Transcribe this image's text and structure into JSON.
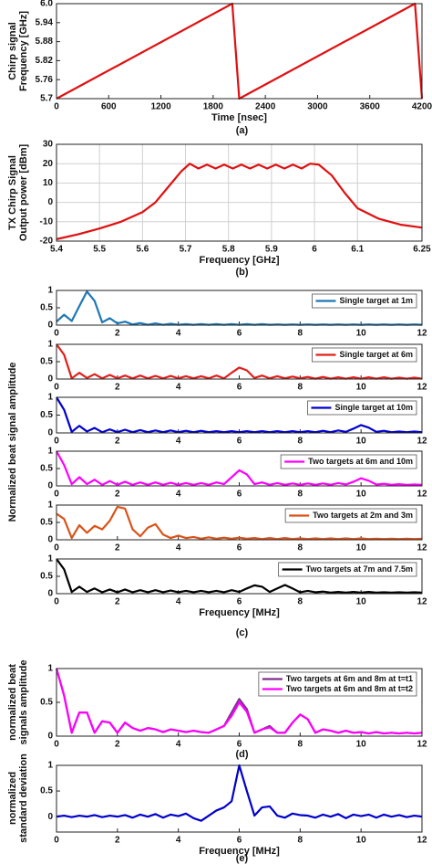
{
  "chart_data": [
    {
      "type": "line",
      "x": [
        0,
        2020,
        2100,
        4120,
        4200
      ],
      "series": [
        {
          "color": "#e01010",
          "values": [
            5.7,
            6,
            5.7,
            6,
            5.7
          ]
        }
      ],
      "xlim": [
        0,
        4200
      ],
      "xticks": [
        0,
        600,
        1200,
        1800,
        2400,
        3000,
        3600,
        4200
      ],
      "ylim": [
        5.7,
        6
      ],
      "yticks": [
        5.7,
        5.76,
        5.82,
        5.88,
        5.94,
        {
          "value": 6,
          "label": "6.0"
        }
      ],
      "grid": false,
      "xlabel": "Time [nsec]",
      "ylabel": [
        "Chirp signal",
        "Frequency [GHz]"
      ],
      "caption": "(a)"
    },
    {
      "type": "line",
      "x": [
        5.4,
        5.45,
        5.5,
        5.55,
        5.6,
        5.63,
        5.66,
        5.69,
        5.71,
        5.73,
        5.75,
        5.77,
        5.79,
        5.81,
        5.83,
        5.85,
        5.87,
        5.89,
        5.91,
        5.93,
        5.95,
        5.97,
        5.99,
        6.01,
        6.04,
        6.07,
        6.1,
        6.15,
        6.2,
        6.25
      ],
      "series": [
        {
          "color": "#e01010",
          "values": [
            -19,
            -16.5,
            -13.5,
            -10,
            -5,
            0,
            8,
            16,
            20,
            17.5,
            19.5,
            17.5,
            19.5,
            17.5,
            19.5,
            17.5,
            19.5,
            17.5,
            19.5,
            17.5,
            19.5,
            17.5,
            20,
            19.5,
            14,
            5,
            -3,
            -8.5,
            -11.5,
            -13
          ]
        }
      ],
      "xlim": [
        5.4,
        6.25
      ],
      "xticks": [
        5.4,
        5.5,
        5.6,
        5.7,
        5.8,
        5.9,
        6,
        6.1,
        6.25
      ],
      "ylim": [
        -20,
        30
      ],
      "yticks": [
        -20,
        -10,
        0,
        10,
        20,
        30
      ],
      "grid": true,
      "xlabel": "Frequency [GHz]",
      "ylabel": [
        "TX Chirp Signal",
        "Output power [dBm]"
      ],
      "caption": "(b)"
    },
    {
      "type": "line",
      "x": [
        0,
        0.25,
        0.5,
        0.75,
        1,
        1.25,
        1.5,
        1.75,
        2,
        2.25,
        2.5,
        2.75,
        3,
        3.25,
        3.5,
        3.75,
        4,
        4.25,
        4.5,
        4.75,
        5,
        5.25,
        5.5,
        5.75,
        6,
        6.25,
        6.5,
        6.75,
        7,
        7.25,
        7.5,
        7.75,
        8,
        8.25,
        8.5,
        8.75,
        9,
        9.25,
        9.5,
        9.75,
        10,
        10.25,
        10.5,
        10.75,
        11,
        11.25,
        11.5,
        11.75,
        12
      ],
      "series": [
        {
          "name": "Single target at 1m",
          "color": "#1f77b4",
          "values": [
            0.1,
            0.3,
            0.12,
            0.55,
            0.97,
            0.7,
            0.08,
            0.2,
            0.05,
            0.1,
            0.02,
            0.06,
            0.01,
            0.05,
            0.01,
            0.04,
            0.01,
            0.03,
            0.01,
            0.03,
            0.01,
            0.03,
            0.01,
            0.03,
            0.01,
            0.03,
            0.01,
            0.03,
            0.01,
            0.02,
            0.01,
            0.02,
            0.01,
            0.02,
            0.01,
            0.02,
            0.01,
            0.02,
            0.01,
            0.02,
            0.01,
            0.02,
            0.01,
            0.02,
            0.01,
            0.02,
            0.01,
            0.02,
            0.01
          ]
        }
      ],
      "xlim": [
        0,
        12
      ],
      "xticks": [
        0,
        2,
        4,
        6,
        8,
        10,
        12
      ],
      "ylim": [
        0,
        1
      ],
      "yticks": [
        0,
        0.5,
        1
      ],
      "grid": false
    },
    {
      "type": "line",
      "x": [
        0,
        0.25,
        0.5,
        0.75,
        1,
        1.25,
        1.5,
        1.75,
        2,
        2.25,
        2.5,
        2.75,
        3,
        3.25,
        3.5,
        3.75,
        4,
        4.25,
        4.5,
        4.75,
        5,
        5.25,
        5.5,
        5.75,
        6,
        6.25,
        6.5,
        6.75,
        7,
        7.25,
        7.5,
        7.75,
        8,
        8.25,
        8.5,
        8.75,
        9,
        9.25,
        9.5,
        9.75,
        10,
        10.25,
        10.5,
        10.75,
        11,
        11.25,
        11.5,
        11.75,
        12
      ],
      "series": [
        {
          "name": "Single target at 6m",
          "color": "#e0201c",
          "values": [
            1,
            0.7,
            0.02,
            0.18,
            0.03,
            0.14,
            0.02,
            0.12,
            0.02,
            0.1,
            0.02,
            0.1,
            0.02,
            0.09,
            0.02,
            0.09,
            0.02,
            0.08,
            0.02,
            0.08,
            0.02,
            0.1,
            0.02,
            0.18,
            0.33,
            0.25,
            0.03,
            0.1,
            0.02,
            0.08,
            0.02,
            0.07,
            0.02,
            0.06,
            0.01,
            0.06,
            0.01,
            0.05,
            0.01,
            0.05,
            0.01,
            0.05,
            0.01,
            0.05,
            0.01,
            0.04,
            0.01,
            0.04,
            0.01
          ]
        }
      ],
      "xlim": [
        0,
        12
      ],
      "xticks": [
        0,
        2,
        4,
        6,
        8,
        10,
        12
      ],
      "ylim": [
        0,
        1
      ],
      "yticks": [
        0,
        0.5,
        1
      ],
      "grid": false
    },
    {
      "type": "line",
      "x": [
        0,
        0.25,
        0.5,
        0.75,
        1,
        1.25,
        1.5,
        1.75,
        2,
        2.25,
        2.5,
        2.75,
        3,
        3.25,
        3.5,
        3.75,
        4,
        4.25,
        4.5,
        4.75,
        5,
        5.25,
        5.5,
        5.75,
        6,
        6.25,
        6.5,
        6.75,
        7,
        7.25,
        7.5,
        7.75,
        8,
        8.25,
        8.5,
        8.75,
        9,
        9.25,
        9.5,
        9.75,
        10,
        10.25,
        10.5,
        10.75,
        11,
        11.25,
        11.5,
        11.75,
        12
      ],
      "series": [
        {
          "name": "Single target at 10m",
          "color": "#0000cc",
          "values": [
            1,
            0.65,
            0.03,
            0.2,
            0.04,
            0.14,
            0.02,
            0.1,
            0.02,
            0.09,
            0.02,
            0.08,
            0.02,
            0.07,
            0.02,
            0.07,
            0.02,
            0.06,
            0.02,
            0.06,
            0.02,
            0.05,
            0.02,
            0.05,
            0.02,
            0.05,
            0.02,
            0.05,
            0.02,
            0.05,
            0.02,
            0.05,
            0.02,
            0.05,
            0.02,
            0.06,
            0.02,
            0.07,
            0.03,
            0.12,
            0.22,
            0.15,
            0.03,
            0.06,
            0.02,
            0.04,
            0.02,
            0.04,
            0.02
          ]
        }
      ],
      "xlim": [
        0,
        12
      ],
      "xticks": [
        0,
        2,
        4,
        6,
        8,
        10,
        12
      ],
      "ylim": [
        0,
        1
      ],
      "yticks": [
        0,
        0.5,
        1
      ],
      "grid": false,
      "ylabel": [
        "Normalized beat signal amplitude"
      ]
    },
    {
      "type": "line",
      "x": [
        0,
        0.25,
        0.5,
        0.75,
        1,
        1.25,
        1.5,
        1.75,
        2,
        2.25,
        2.5,
        2.75,
        3,
        3.25,
        3.5,
        3.75,
        4,
        4.25,
        4.5,
        4.75,
        5,
        5.25,
        5.5,
        5.75,
        6,
        6.25,
        6.5,
        6.75,
        7,
        7.25,
        7.5,
        7.75,
        8,
        8.25,
        8.5,
        8.75,
        9,
        9.25,
        9.5,
        9.75,
        10,
        10.25,
        10.5,
        10.75,
        11,
        11.25,
        11.5,
        11.75,
        12
      ],
      "series": [
        {
          "name": "Two targets at 6m and 10m",
          "color": "#ff00ff",
          "values": [
            1,
            0.6,
            0.05,
            0.25,
            0.05,
            0.18,
            0.03,
            0.14,
            0.03,
            0.12,
            0.03,
            0.1,
            0.03,
            0.1,
            0.03,
            0.09,
            0.03,
            0.08,
            0.03,
            0.08,
            0.03,
            0.1,
            0.05,
            0.25,
            0.45,
            0.33,
            0.05,
            0.1,
            0.03,
            0.08,
            0.03,
            0.07,
            0.03,
            0.07,
            0.03,
            0.07,
            0.03,
            0.08,
            0.04,
            0.12,
            0.22,
            0.15,
            0.04,
            0.06,
            0.03,
            0.05,
            0.03,
            0.04,
            0.03
          ]
        }
      ],
      "xlim": [
        0,
        12
      ],
      "xticks": [
        0,
        2,
        4,
        6,
        8,
        10,
        12
      ],
      "ylim": [
        0,
        1
      ],
      "yticks": [
        0,
        0.5,
        1
      ],
      "grid": false
    },
    {
      "type": "line",
      "x": [
        0,
        0.25,
        0.5,
        0.75,
        1,
        1.25,
        1.5,
        1.75,
        2,
        2.25,
        2.5,
        2.75,
        3,
        3.25,
        3.5,
        3.75,
        4,
        4.25,
        4.5,
        4.75,
        5,
        5.25,
        5.5,
        5.75,
        6,
        6.25,
        6.5,
        6.75,
        7,
        7.25,
        7.5,
        7.75,
        8,
        8.25,
        8.5,
        8.75,
        9,
        9.25,
        9.5,
        9.75,
        10,
        10.25,
        10.5,
        10.75,
        11,
        11.25,
        11.5,
        11.75,
        12
      ],
      "series": [
        {
          "name": "Two targets at 2m and 3m",
          "color": "#d95319",
          "values": [
            0.75,
            0.6,
            0.05,
            0.42,
            0.2,
            0.4,
            0.3,
            0.55,
            0.95,
            0.9,
            0.3,
            0.1,
            0.35,
            0.45,
            0.15,
            0.05,
            0.12,
            0.05,
            0.08,
            0.03,
            0.07,
            0.03,
            0.06,
            0.03,
            0.06,
            0.03,
            0.05,
            0.02,
            0.05,
            0.02,
            0.05,
            0.02,
            0.04,
            0.02,
            0.04,
            0.02,
            0.04,
            0.02,
            0.04,
            0.02,
            0.04,
            0.02,
            0.03,
            0.02,
            0.03,
            0.02,
            0.03,
            0.02,
            0.03
          ]
        }
      ],
      "xlim": [
        0,
        12
      ],
      "xticks": [
        0,
        2,
        4,
        6,
        8,
        10,
        12
      ],
      "ylim": [
        0,
        1
      ],
      "yticks": [
        0,
        0.5,
        1
      ],
      "grid": false
    },
    {
      "type": "line",
      "x": [
        0,
        0.25,
        0.5,
        0.75,
        1,
        1.25,
        1.5,
        1.75,
        2,
        2.25,
        2.5,
        2.75,
        3,
        3.25,
        3.5,
        3.75,
        4,
        4.25,
        4.5,
        4.75,
        5,
        5.25,
        5.5,
        5.75,
        6,
        6.25,
        6.5,
        6.75,
        7,
        7.25,
        7.5,
        7.75,
        8,
        8.25,
        8.5,
        8.75,
        9,
        9.25,
        9.5,
        9.75,
        10,
        10.25,
        10.5,
        10.75,
        11,
        11.25,
        11.5,
        11.75,
        12
      ],
      "series": [
        {
          "name": "Two targets at 7m and 7.5m",
          "color": "#000000",
          "values": [
            1,
            0.7,
            0.05,
            0.2,
            0.05,
            0.15,
            0.04,
            0.12,
            0.04,
            0.12,
            0.04,
            0.1,
            0.04,
            0.1,
            0.04,
            0.09,
            0.04,
            0.08,
            0.04,
            0.08,
            0.04,
            0.08,
            0.04,
            0.1,
            0.05,
            0.15,
            0.24,
            0.2,
            0.05,
            0.15,
            0.25,
            0.15,
            0.04,
            0.08,
            0.04,
            0.06,
            0.03,
            0.05,
            0.03,
            0.05,
            0.03,
            0.05,
            0.03,
            0.04,
            0.03,
            0.04,
            0.03,
            0.04,
            0.03
          ]
        }
      ],
      "xlim": [
        0,
        12
      ],
      "xticks": [
        0,
        2,
        4,
        6,
        8,
        10,
        12
      ],
      "ylim": [
        0,
        1
      ],
      "yticks": [
        0,
        0.5,
        1
      ],
      "grid": false,
      "xlabel": "Frequency [MHz]",
      "caption": "(c)"
    },
    {
      "type": "line",
      "x": [
        0,
        0.25,
        0.5,
        0.75,
        1,
        1.25,
        1.5,
        1.75,
        2,
        2.25,
        2.5,
        2.75,
        3,
        3.25,
        3.5,
        3.75,
        4,
        4.25,
        4.5,
        4.75,
        5,
        5.25,
        5.5,
        5.75,
        6,
        6.25,
        6.5,
        6.75,
        7,
        7.25,
        7.5,
        7.75,
        8,
        8.25,
        8.5,
        8.75,
        9,
        9.25,
        9.5,
        9.75,
        10,
        10.25,
        10.5,
        10.75,
        11,
        11.25,
        11.5,
        11.75,
        12
      ],
      "series": [
        {
          "name": "Two targets at 6m and 8m at t=t1",
          "color": "#7e2f8e",
          "values": [
            1,
            0.6,
            0.05,
            0.35,
            0.35,
            0.05,
            0.22,
            0.2,
            0.05,
            0.2,
            0.12,
            0.08,
            0.12,
            0.1,
            0.06,
            0.1,
            0.08,
            0.06,
            0.08,
            0.06,
            0.05,
            0.1,
            0.15,
            0.35,
            0.55,
            0.4,
            0.05,
            0.1,
            0.15,
            0.05,
            0.05,
            0.2,
            0.32,
            0.25,
            0.05,
            0.1,
            0.08,
            0.05,
            0.08,
            0.05,
            0.06,
            0.04,
            0.06,
            0.04,
            0.05,
            0.04,
            0.05,
            0.04,
            0.05
          ]
        },
        {
          "name": "Two targets at 6m and 8m at t=t2",
          "color": "#ff00ff",
          "values": [
            1,
            0.6,
            0.05,
            0.35,
            0.35,
            0.05,
            0.22,
            0.2,
            0.05,
            0.2,
            0.12,
            0.08,
            0.12,
            0.1,
            0.06,
            0.1,
            0.08,
            0.06,
            0.08,
            0.06,
            0.05,
            0.1,
            0.15,
            0.3,
            0.5,
            0.36,
            0.05,
            0.1,
            0.13,
            0.05,
            0.05,
            0.2,
            0.32,
            0.25,
            0.05,
            0.1,
            0.08,
            0.05,
            0.08,
            0.05,
            0.06,
            0.04,
            0.06,
            0.04,
            0.05,
            0.04,
            0.05,
            0.04,
            0.05
          ]
        }
      ],
      "xlim": [
        0,
        12
      ],
      "xticks": [
        0,
        2,
        4,
        6,
        8,
        10,
        12
      ],
      "ylim": [
        0,
        1
      ],
      "yticks": [
        0,
        0.5,
        1
      ],
      "grid": false,
      "ylabel": [
        "normalized beat",
        "signals amplitude"
      ],
      "caption": "(d)"
    },
    {
      "type": "line",
      "x": [
        0,
        0.25,
        0.5,
        0.75,
        1,
        1.25,
        1.5,
        1.75,
        2,
        2.25,
        2.5,
        2.75,
        3,
        3.25,
        3.5,
        3.75,
        4,
        4.25,
        4.5,
        4.75,
        5,
        5.25,
        5.5,
        5.75,
        6,
        6.25,
        6.5,
        6.75,
        7,
        7.25,
        7.5,
        7.75,
        8,
        8.25,
        8.5,
        8.75,
        9,
        9.25,
        9.5,
        9.75,
        10,
        10.25,
        10.5,
        10.75,
        11,
        11.25,
        11.5,
        11.75,
        12
      ],
      "series": [
        {
          "color": "#0000cc",
          "values": [
            0,
            0.02,
            -0.01,
            0.02,
            0,
            0.03,
            -0.01,
            0.02,
            0,
            0.03,
            -0.02,
            0.04,
            0,
            0.05,
            -0.02,
            0.04,
            0.01,
            0.06,
            -0.03,
            -0.08,
            0.02,
            0.12,
            0.18,
            0.3,
            1,
            0.5,
            0.02,
            0.18,
            0.2,
            0.02,
            -0.02,
            0.06,
            0.03,
            0.02,
            -0.02,
            0.04,
            0,
            0.05,
            -0.03,
            0.04,
            0.01,
            0.04,
            -0.02,
            0.04,
            0,
            0.03,
            -0.01,
            0.02,
            0
          ]
        }
      ],
      "xlim": [
        0,
        12
      ],
      "xticks": [
        0,
        2,
        4,
        6,
        8,
        10,
        12
      ],
      "ylim": [
        -0.3,
        1
      ],
      "yticks": [
        0,
        0.5,
        1
      ],
      "grid": false,
      "xlabel": "Frequency [MHz]",
      "ylabel": [
        "normalized",
        "standard deviation"
      ],
      "caption": "(e)"
    }
  ]
}
